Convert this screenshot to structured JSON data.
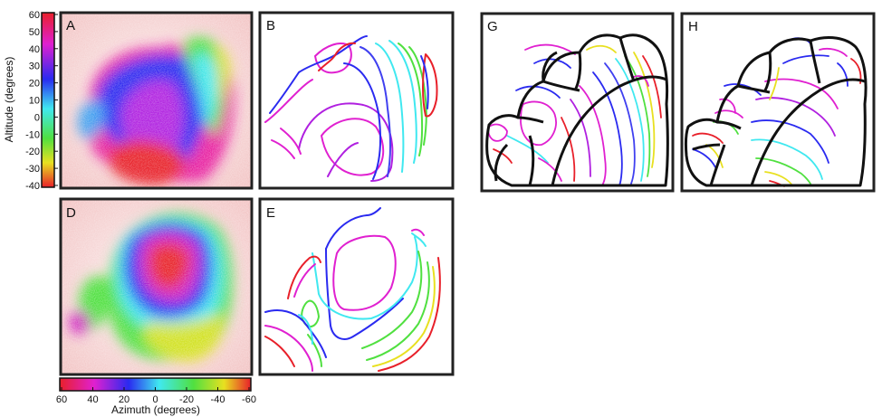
{
  "panels": {
    "A": {
      "letter": "A"
    },
    "B": {
      "letter": "B"
    },
    "D": {
      "letter": "D"
    },
    "E": {
      "letter": "E"
    },
    "G": {
      "letter": "G"
    },
    "H": {
      "letter": "H"
    }
  },
  "altitude_bar": {
    "title": "Altitude (degrees)",
    "ticks": [
      "60",
      "50",
      "40",
      "30",
      "20",
      "10",
      "0",
      "-10",
      "-20",
      "-30",
      "-40"
    ]
  },
  "azimuth_bar": {
    "title": "Azimuth (degrees)",
    "ticks": [
      "60",
      "40",
      "20",
      "0",
      "-20",
      "-40",
      "-60"
    ]
  },
  "colors": {
    "red": "#e8202a",
    "magenta": "#e020d0",
    "blue": "#2a2af0",
    "cyan": "#40e8f0",
    "green": "#50e040",
    "yellow": "#e8e020",
    "outline": "#111111"
  }
}
